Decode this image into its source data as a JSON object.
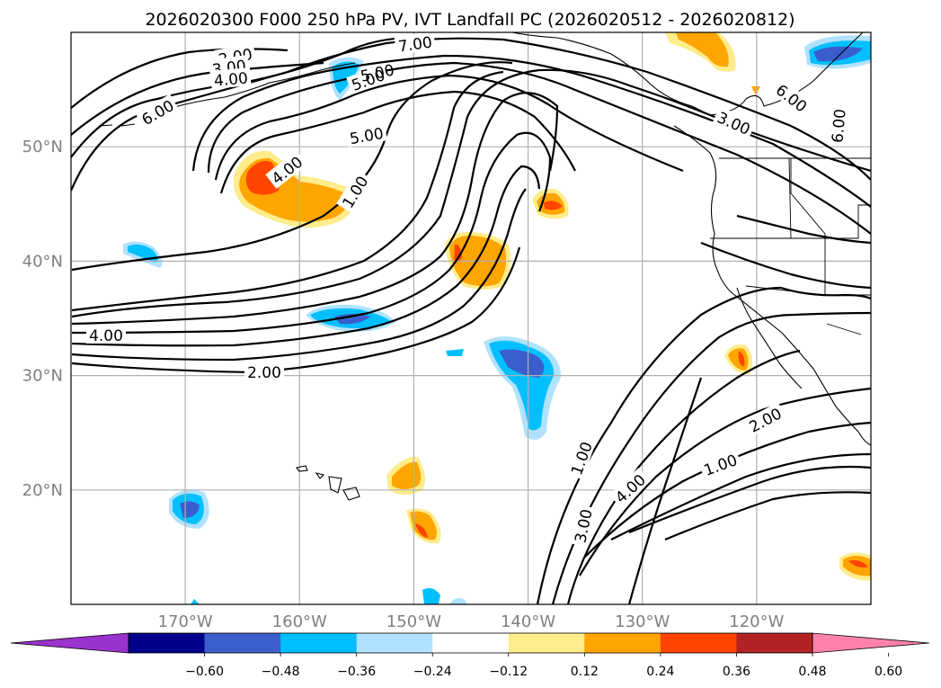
{
  "title": "2026020300 F000 250 hPa PV, IVT Landfall PC (2026020512 - 2026020812)",
  "map": {
    "projection": "equirectangular",
    "lon_range": [
      -180,
      -110
    ],
    "lat_range": [
      10,
      60
    ],
    "grid": true,
    "lon_ticks": [
      {
        "value": -170,
        "label": "170°W"
      },
      {
        "value": -160,
        "label": "160°W"
      },
      {
        "value": -150,
        "label": "150°W"
      },
      {
        "value": -140,
        "label": "140°W"
      },
      {
        "value": -130,
        "label": "130°W"
      },
      {
        "value": -120,
        "label": "120°W"
      }
    ],
    "lat_ticks": [
      {
        "value": 20,
        "label": "20°N"
      },
      {
        "value": 30,
        "label": "30°N"
      },
      {
        "value": 40,
        "label": "40°N"
      },
      {
        "value": 50,
        "label": "50°N"
      }
    ]
  },
  "colorbar": {
    "extend": "both",
    "ticks": [
      "−0.60",
      "−0.48",
      "−0.36",
      "−0.24",
      "−0.12",
      "0.12",
      "0.24",
      "0.36",
      "0.48",
      "0.60"
    ],
    "colors": [
      "#9a32cd",
      "#00008b",
      "#3a5fcd",
      "#00bfff",
      "#b0e2ff",
      "#ffffff",
      "#ffec8b",
      "#ffa500",
      "#ff4500",
      "#b22222",
      "#ff82ab"
    ]
  },
  "contour_labels": [
    "7.00",
    "2.00",
    "3.00",
    "4.00",
    "6.00",
    "5.00",
    "6.00",
    "4.00",
    "5.00",
    "1.00",
    "3.00",
    "6.00",
    "5.00",
    "4.00",
    "2.00",
    "1.00",
    "3.00",
    "4.00",
    "1.00",
    "2.00",
    "1.00"
  ]
}
